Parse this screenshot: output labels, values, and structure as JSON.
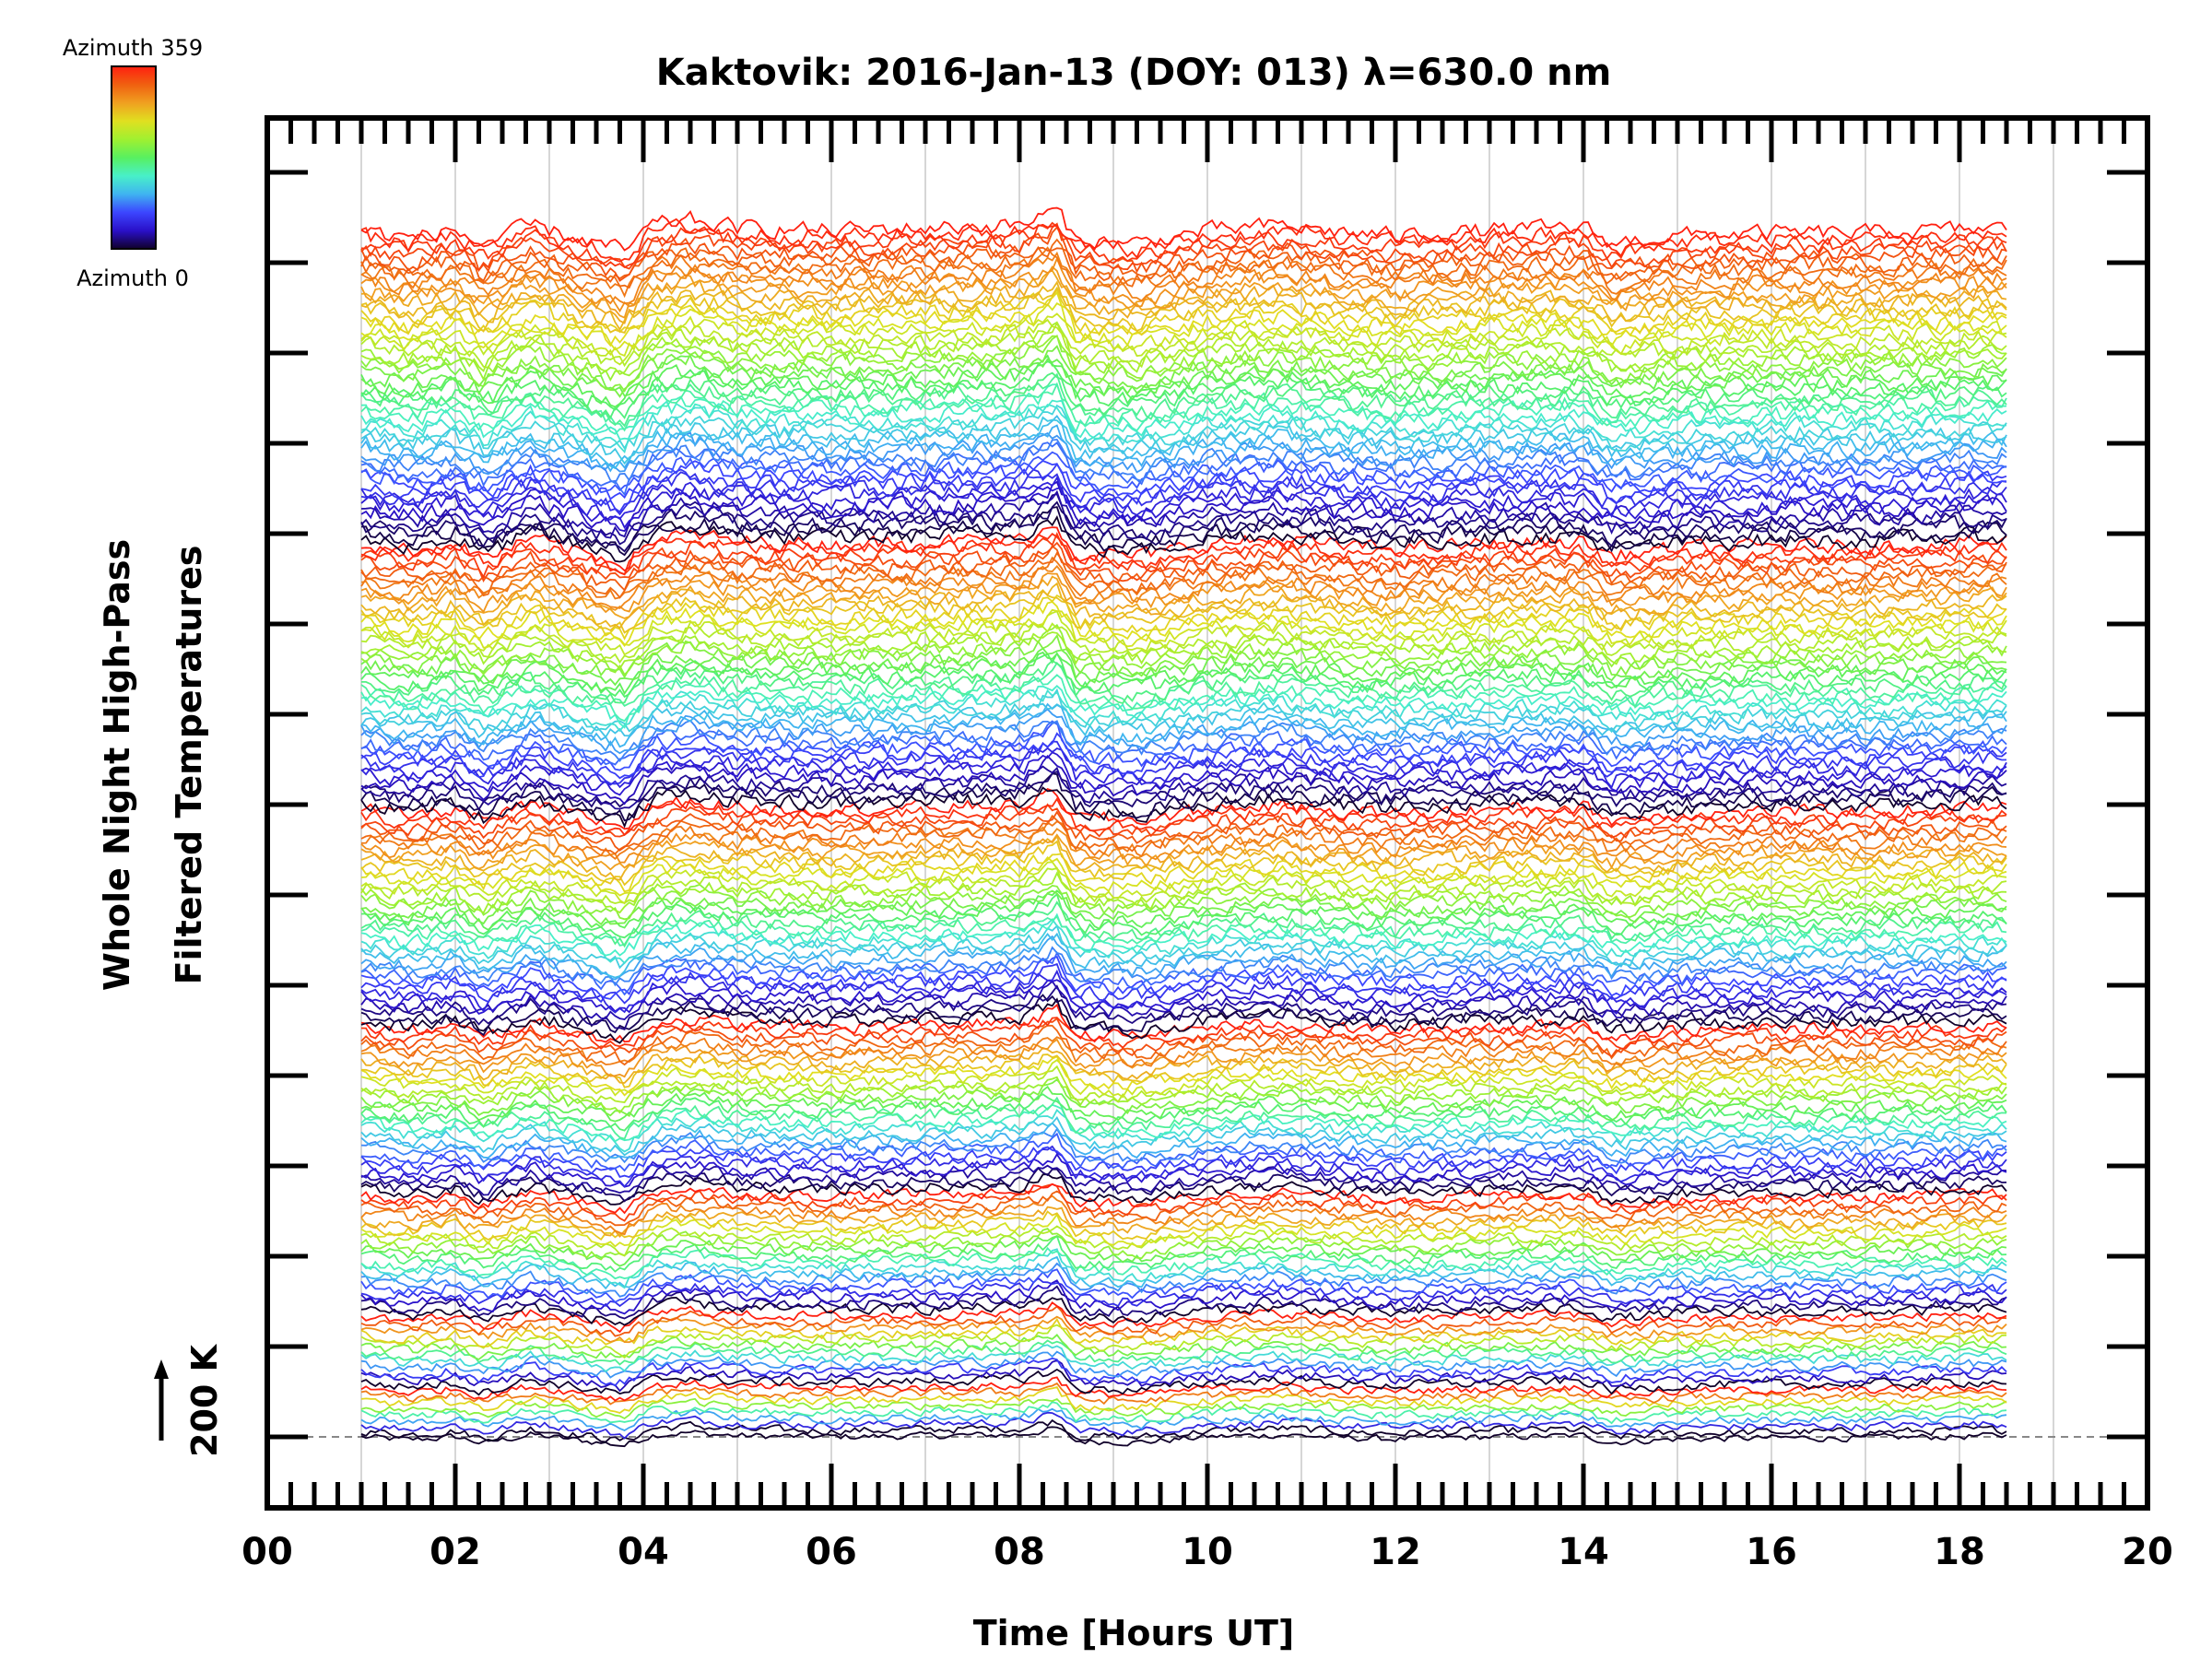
{
  "chart_data": {
    "type": "line",
    "title": "Kaktovik: 2016-Jan-13 (DOY: 013) λ=630.0 nm",
    "xlabel": "Time [Hours UT]",
    "ylabel_line1": "Whole Night High-Pass",
    "ylabel_line2": "Filtered Temperatures",
    "scale_bar_label": "200 K",
    "scale_bar_value_K": 200,
    "xlim": [
      0,
      20
    ],
    "x_ticks": [
      "00",
      "02",
      "04",
      "06",
      "08",
      "10",
      "12",
      "14",
      "16",
      "18",
      "20"
    ],
    "x_tick_values": [
      0,
      2,
      4,
      6,
      8,
      10,
      12,
      14,
      16,
      18,
      20
    ],
    "data_x_range": [
      1.0,
      18.5
    ],
    "grid": "vertical lines every hour",
    "colorbar": {
      "top_label": "Azimuth 359",
      "bottom_label": "Azimuth 0",
      "colors": [
        "#10002a",
        "#2a10c8",
        "#3c46ff",
        "#3fb4f0",
        "#48f0c8",
        "#58f060",
        "#a0f030",
        "#e0e020",
        "#f0a020",
        "#f06010",
        "#ff2010"
      ]
    },
    "ring_zone_counts": [
      1,
      8,
      12,
      20,
      28,
      36,
      44,
      52
    ],
    "trace_offset_K": 17,
    "common_signal_K": [
      [
        1,
        0
      ],
      [
        1.5,
        -15
      ],
      [
        2,
        0
      ],
      [
        2.3,
        -30
      ],
      [
        2.8,
        10
      ],
      [
        3.2,
        -10
      ],
      [
        3.8,
        -40
      ],
      [
        4.1,
        10
      ],
      [
        4.5,
        20
      ],
      [
        5,
        5
      ],
      [
        6,
        0
      ],
      [
        7,
        5
      ],
      [
        8,
        10
      ],
      [
        8.4,
        40
      ],
      [
        8.6,
        -20
      ],
      [
        9.3,
        -25
      ],
      [
        10,
        0
      ],
      [
        10.8,
        10
      ],
      [
        11.5,
        -5
      ],
      [
        12,
        -10
      ],
      [
        13,
        0
      ],
      [
        14,
        5
      ],
      [
        14.3,
        -25
      ],
      [
        15,
        -10
      ],
      [
        16,
        -5
      ],
      [
        17,
        -5
      ],
      [
        18.5,
        5
      ]
    ]
  }
}
